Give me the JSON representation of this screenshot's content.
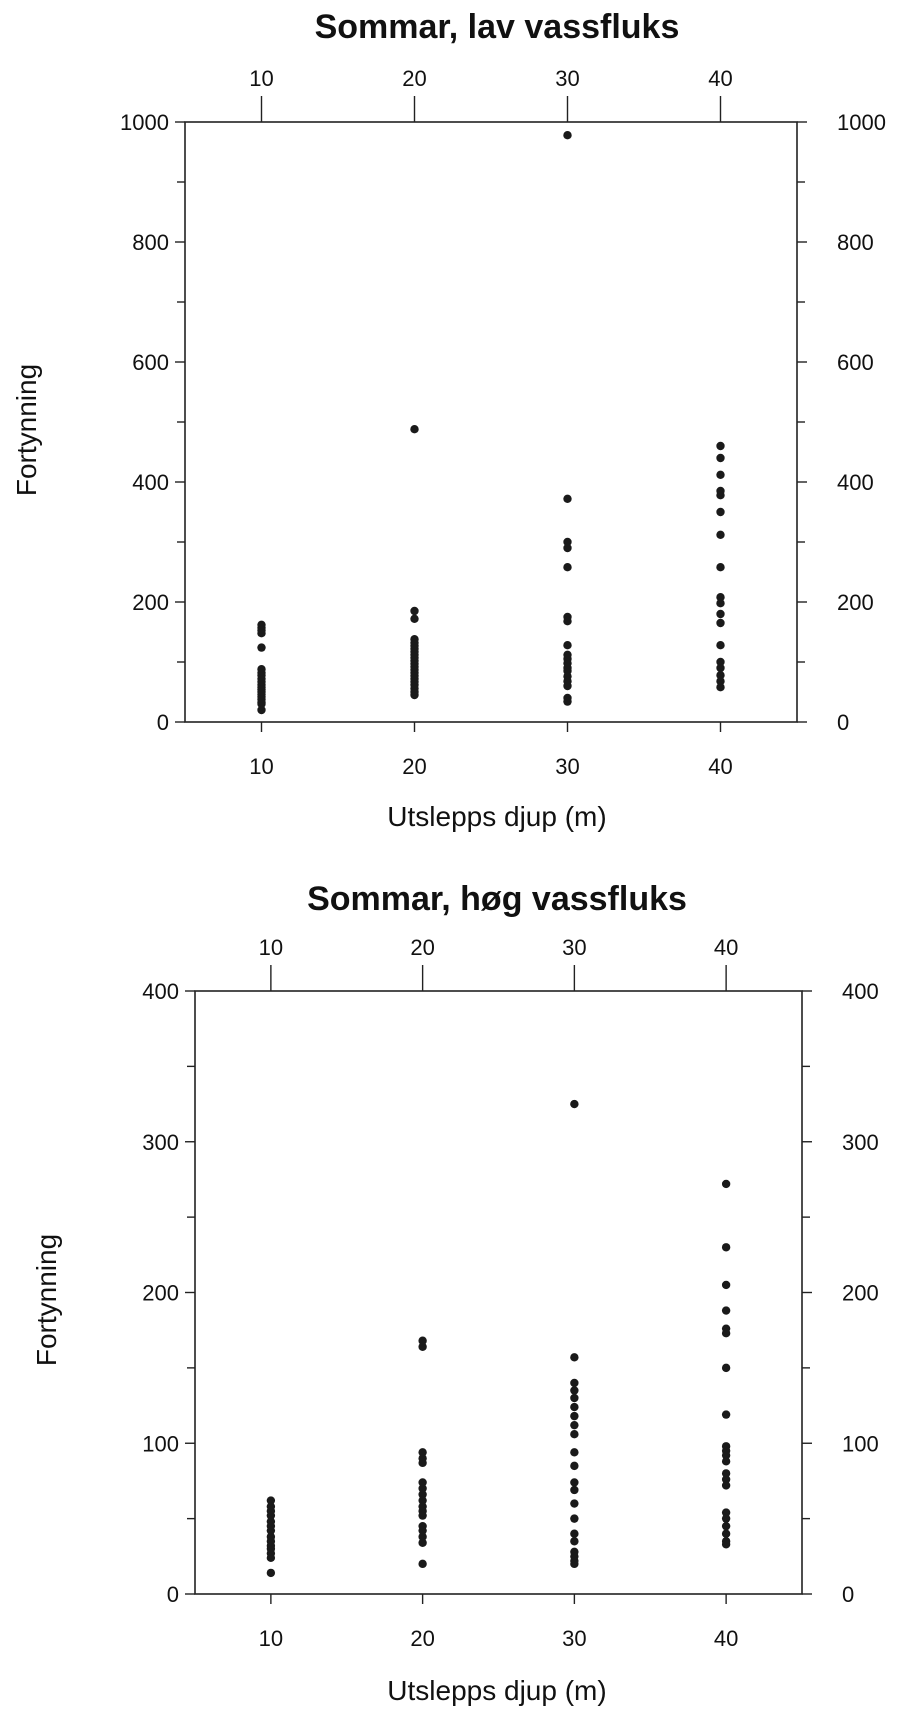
{
  "chart_data": [
    {
      "type": "scatter",
      "title": "Sommar, lav vassfluks",
      "xlabel": "Utslepps djup (m)",
      "ylabel": "Fortynning",
      "categories": [
        10,
        20,
        30,
        40
      ],
      "xlim": [
        5,
        45
      ],
      "ylim": [
        0,
        1000
      ],
      "y_ticks": [
        0,
        200,
        400,
        600,
        800,
        1000
      ],
      "x_ticks": [
        10,
        20,
        30,
        40
      ],
      "grid": false,
      "points": [
        {
          "x": 10,
          "y": [
            162,
            157,
            153,
            148,
            124,
            88,
            82,
            78,
            72,
            67,
            62,
            58,
            54,
            50,
            46,
            42,
            38,
            33,
            30,
            20
          ]
        },
        {
          "x": 20,
          "y": [
            488,
            185,
            172,
            138,
            132,
            127,
            122,
            117,
            112,
            107,
            102,
            97,
            92,
            87,
            82,
            77,
            72,
            67,
            62,
            56,
            50,
            45
          ]
        },
        {
          "x": 30,
          "y": [
            978,
            372,
            300,
            290,
            258,
            175,
            168,
            128,
            112,
            105,
            98,
            90,
            85,
            76,
            68,
            60,
            40,
            34
          ]
        },
        {
          "x": 40,
          "y": [
            460,
            440,
            412,
            385,
            378,
            350,
            312,
            258,
            208,
            198,
            180,
            165,
            128,
            100,
            90,
            78,
            68,
            58
          ]
        }
      ]
    },
    {
      "type": "scatter",
      "title": "Sommar, høg vassfluks",
      "xlabel": "Utslepps djup (m)",
      "ylabel": "Fortynning",
      "categories": [
        10,
        20,
        30,
        40
      ],
      "xlim": [
        5,
        45
      ],
      "ylim": [
        0,
        400
      ],
      "y_ticks": [
        0,
        100,
        200,
        300,
        400
      ],
      "x_ticks": [
        10,
        20,
        30,
        40
      ],
      "grid": false,
      "points": [
        {
          "x": 10,
          "y": [
            62,
            58,
            55,
            52,
            48,
            45,
            42,
            38,
            35,
            32,
            30,
            27,
            24,
            14
          ]
        },
        {
          "x": 20,
          "y": [
            168,
            164,
            94,
            90,
            87,
            74,
            70,
            66,
            62,
            58,
            55,
            52,
            45,
            42,
            38,
            34,
            20
          ]
        },
        {
          "x": 30,
          "y": [
            325,
            157,
            140,
            135,
            130,
            124,
            118,
            112,
            106,
            94,
            85,
            74,
            69,
            60,
            50,
            40,
            35,
            28,
            25,
            22,
            20
          ]
        },
        {
          "x": 40,
          "y": [
            272,
            230,
            205,
            188,
            176,
            173,
            150,
            119,
            98,
            95,
            92,
            88,
            80,
            76,
            72,
            54,
            50,
            45,
            40,
            35,
            33
          ]
        }
      ]
    }
  ]
}
